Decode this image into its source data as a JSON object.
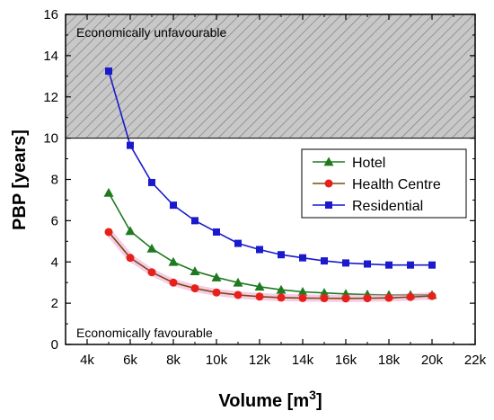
{
  "chart_data": {
    "type": "line",
    "xlabel": "Volume [m",
    "xlabel_superscript": "3",
    "xlabel_close": "]",
    "ylabel": "PBP [years]",
    "xlim": [
      3000,
      22000
    ],
    "ylim": [
      0,
      16
    ],
    "x_ticks": [
      4000,
      6000,
      8000,
      10000,
      12000,
      14000,
      16000,
      18000,
      20000,
      22000
    ],
    "x_tick_labels": [
      "4k",
      "6k",
      "8k",
      "10k",
      "12k",
      "14k",
      "16k",
      "18k",
      "20k",
      "22k"
    ],
    "y_ticks": [
      0,
      2,
      4,
      6,
      8,
      10,
      12,
      14,
      16
    ],
    "y_tick_labels": [
      "0",
      "2",
      "4",
      "6",
      "8",
      "10",
      "12",
      "14",
      "16"
    ],
    "grid": false,
    "legend_position": "right",
    "x": [
      5000,
      6000,
      7000,
      8000,
      9000,
      10000,
      11000,
      12000,
      13000,
      14000,
      15000,
      16000,
      17000,
      18000,
      19000,
      20000
    ],
    "series": [
      {
        "name": "Hotel",
        "color": "#1f7a1f",
        "marker": "triangle",
        "values": [
          7.35,
          5.5,
          4.65,
          4.0,
          3.55,
          3.25,
          3.0,
          2.8,
          2.65,
          2.55,
          2.5,
          2.45,
          2.42,
          2.4,
          2.4,
          2.4
        ]
      },
      {
        "name": "Health Centre",
        "color": "#e8201a",
        "line_color": "#7a4a10",
        "marker": "circle",
        "values": [
          5.45,
          4.2,
          3.5,
          3.0,
          2.72,
          2.52,
          2.4,
          2.32,
          2.27,
          2.25,
          2.24,
          2.23,
          2.24,
          2.26,
          2.3,
          2.35
        ]
      },
      {
        "name": "Residential",
        "color": "#1a1acc",
        "marker": "square",
        "values": [
          13.25,
          9.65,
          7.85,
          6.75,
          6.0,
          5.45,
          4.9,
          4.6,
          4.35,
          4.2,
          4.05,
          3.95,
          3.9,
          3.85,
          3.85,
          3.85
        ]
      }
    ],
    "regions": [
      {
        "label": "Economically unfavourable",
        "y_range": [
          10,
          16
        ],
        "fill": "hatched-gray"
      },
      {
        "label": "Economically favourable",
        "y_range": [
          0,
          10
        ],
        "fill": "none"
      }
    ]
  }
}
